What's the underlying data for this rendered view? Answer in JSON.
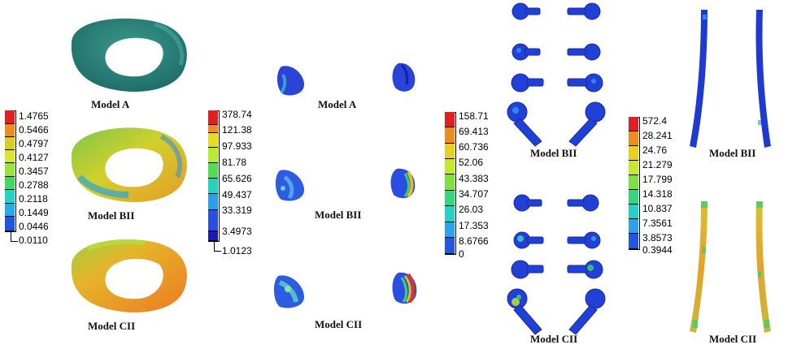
{
  "panels": [
    {
      "id": "p1",
      "legend": {
        "ticks": [
          "1.4765",
          "0.5466",
          "0.4797",
          "0.4127",
          "0.3457",
          "0.2788",
          "0.2118",
          "0.1449",
          "0.0446"
        ],
        "min_label": "0.0110",
        "colors": [
          "#e02020",
          "#ef8c1e",
          "#d8d020",
          "#d6e830",
          "#9be23a",
          "#46d667",
          "#25d1c8",
          "#29a9ec",
          "#1f55e0"
        ]
      },
      "labels": [
        "Model A",
        "Model BII",
        "Model CII"
      ]
    },
    {
      "id": "p2",
      "legend": {
        "ticks": [
          "378.74",
          "121.38",
          "97.933",
          "81.78",
          "65.626",
          "49.437",
          "33.319",
          "3.4973"
        ],
        "min_label": "1.0123",
        "colors": [
          "#e02020",
          "#ef8c1e",
          "#e8dc20",
          "#b8ea30",
          "#55db5a",
          "#26d2be",
          "#29a0ec",
          "#2a4fe0",
          "#1a1ab0"
        ]
      },
      "labels": [
        "Model A",
        "Model BII",
        "Model CII"
      ]
    },
    {
      "id": "p3",
      "legend": {
        "ticks": [
          "158.71",
          "69.413",
          "60.736",
          "52.06",
          "43.383",
          "34.707",
          "26.03",
          "17.353",
          "8.6766",
          "0"
        ],
        "colors": [
          "#e02020",
          "#ef8c1e",
          "#e8d020",
          "#c4e830",
          "#7fe03f",
          "#34d680",
          "#26d1c6",
          "#29a4ec",
          "#2355e0"
        ]
      },
      "labels": [
        "Model BII",
        "Model CII"
      ]
    },
    {
      "id": "p4",
      "legend": {
        "ticks": [
          "572.4",
          "28.241",
          "24.76",
          "21.279",
          "17.799",
          "14.318",
          "10.837",
          "7.3561",
          "3.8573",
          "0.3944"
        ],
        "colors": [
          "#e02020",
          "#ef8c1e",
          "#e8d020",
          "#c4e830",
          "#7fe03f",
          "#34d680",
          "#26d1c6",
          "#29a4ec",
          "#2355e0"
        ]
      },
      "labels": [
        "Model BII",
        "Model CII"
      ]
    }
  ]
}
